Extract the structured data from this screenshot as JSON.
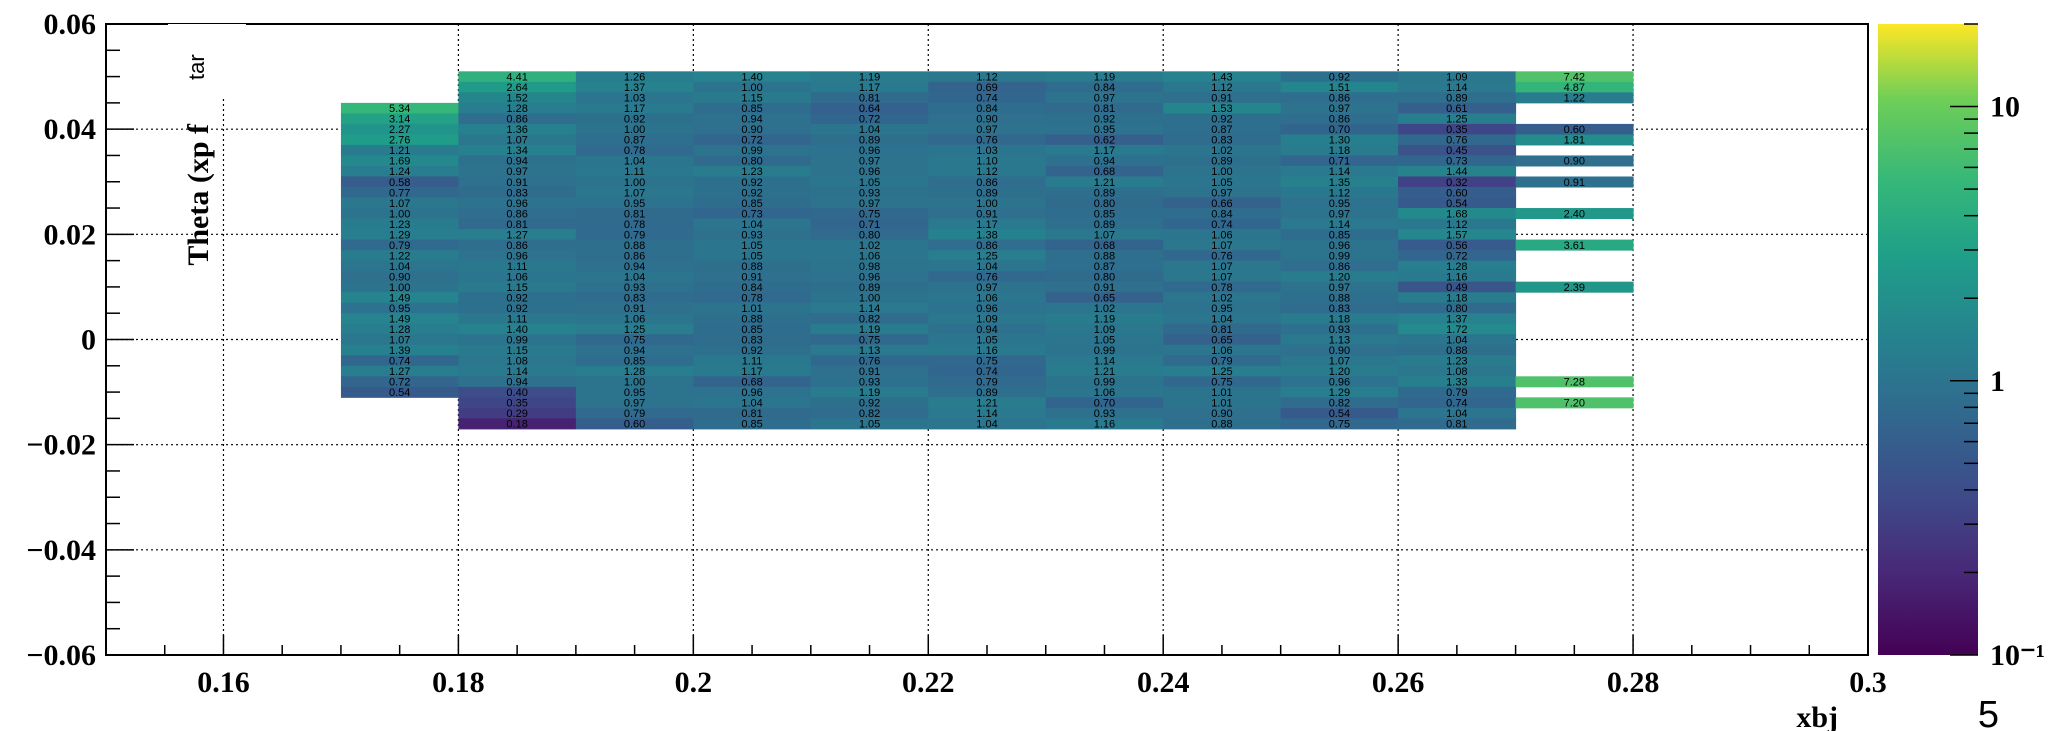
{
  "chart_data": {
    "type": "heatmap",
    "title": "",
    "xlabel": "xbj",
    "ylabel": "Theta (xp f",
    "ylabel_box_text": "tar",
    "corner_text": "5",
    "xlim": [
      0.15,
      0.3
    ],
    "ylim": [
      -0.06,
      0.06
    ],
    "x_ticks": [
      "0.16",
      "0.18",
      "0.2",
      "0.22",
      "0.24",
      "0.26",
      "0.28",
      "0.3"
    ],
    "x_tick_values": [
      0.16,
      0.18,
      0.2,
      0.22,
      0.24,
      0.26,
      0.28,
      0.3
    ],
    "y_ticks": [
      "0.06",
      "0.04",
      "0.02",
      "0",
      "−0.02",
      "−0.04",
      "−0.06"
    ],
    "y_tick_values": [
      0.06,
      0.04,
      0.02,
      0,
      -0.02,
      -0.04,
      -0.06
    ],
    "grid": true,
    "log_z": true,
    "zlim": [
      0.1,
      20
    ],
    "z_ticks": [
      "10",
      "1",
      "10⁻¹"
    ],
    "z_tick_values": [
      10,
      1,
      0.1
    ],
    "colormap": "viridis",
    "x_bin_edges": [
      0.17,
      0.18,
      0.19,
      0.2,
      0.21,
      0.22,
      0.23,
      0.24,
      0.25,
      0.26,
      0.27,
      0.28
    ],
    "y_bin_width": 0.002,
    "columns": [
      {
        "x_low": 0.17,
        "y_top": 0.045,
        "values": [
          "5.34",
          "3.14",
          "2.27",
          "2.76",
          "1.21",
          "1.69",
          "1.24",
          "0.58",
          "0.77",
          "1.07",
          "1.00",
          "1.23",
          "1.29",
          "0.79",
          "1.22",
          "1.04",
          "0.90",
          "1.00",
          "1.49",
          "0.95",
          "1.49",
          "1.28",
          "1.07",
          "1.39",
          "0.74",
          "1.27",
          "0.72",
          "0.54"
        ]
      },
      {
        "x_low": 0.18,
        "y_top": 0.051,
        "values": [
          "4.41",
          "2.64",
          "1.52",
          "1.28",
          "0.86",
          "1.36",
          "1.07",
          "1.34",
          "0.94",
          "0.97",
          "0.91",
          "0.83",
          "0.96",
          "0.86",
          "0.81",
          "1.27",
          "0.86",
          "0.96",
          "1.11",
          "1.06",
          "1.15",
          "0.92",
          "0.92",
          "1.11",
          "1.40",
          "0.99",
          "1.15",
          "1.08",
          "1.14",
          "0.94",
          "0.40",
          "0.35",
          "0.29",
          "0.18"
        ]
      },
      {
        "x_low": 0.19,
        "y_top": 0.051,
        "values": [
          "1.26",
          "1.37",
          "1.03",
          "1.17",
          "0.92",
          "1.00",
          "0.87",
          "0.78",
          "1.04",
          "1.11",
          "1.00",
          "1.07",
          "0.95",
          "0.81",
          "0.78",
          "0.79",
          "0.88",
          "0.86",
          "0.94",
          "1.04",
          "0.93",
          "0.83",
          "0.91",
          "1.06",
          "1.25",
          "0.75",
          "0.94",
          "0.85",
          "1.28",
          "1.00",
          "0.95",
          "0.97",
          "0.79",
          "0.60"
        ]
      },
      {
        "x_low": 0.2,
        "y_top": 0.051,
        "values": [
          "1.40",
          "1.00",
          "1.15",
          "0.85",
          "0.94",
          "0.90",
          "0.72",
          "0.99",
          "0.80",
          "1.23",
          "0.92",
          "0.92",
          "0.85",
          "0.73",
          "1.04",
          "0.93",
          "1.05",
          "1.05",
          "0.88",
          "0.91",
          "0.84",
          "0.78",
          "1.01",
          "0.88",
          "0.85",
          "0.83",
          "0.92",
          "1.11",
          "1.17",
          "0.68",
          "0.96",
          "1.04",
          "0.81",
          "0.85"
        ]
      },
      {
        "x_low": 0.21,
        "y_top": 0.051,
        "values": [
          "1.19",
          "1.17",
          "0.81",
          "0.64",
          "0.72",
          "1.04",
          "0.89",
          "0.96",
          "0.97",
          "0.96",
          "1.05",
          "0.93",
          "0.97",
          "0.75",
          "0.71",
          "0.80",
          "1.02",
          "1.06",
          "0.98",
          "0.96",
          "0.89",
          "1.00",
          "1.14",
          "0.82",
          "1.19",
          "0.75",
          "1.13",
          "0.76",
          "0.91",
          "0.93",
          "1.19",
          "0.92",
          "0.82",
          "1.05"
        ]
      },
      {
        "x_low": 0.22,
        "y_top": 0.051,
        "values": [
          "1.12",
          "0.69",
          "0.74",
          "0.84",
          "0.90",
          "0.97",
          "0.76",
          "1.03",
          "1.10",
          "1.12",
          "0.86",
          "0.89",
          "1.00",
          "0.91",
          "1.17",
          "1.38",
          "0.86",
          "1.25",
          "1.04",
          "0.76",
          "0.97",
          "1.06",
          "0.96",
          "1.09",
          "0.94",
          "1.05",
          "1.16",
          "0.75",
          "0.74",
          "0.79",
          "0.89",
          "1.21",
          "1.14",
          "1.04"
        ]
      },
      {
        "x_low": 0.23,
        "y_top": 0.051,
        "values": [
          "1.19",
          "0.84",
          "0.97",
          "0.81",
          "0.92",
          "0.95",
          "0.62",
          "1.17",
          "0.94",
          "0.68",
          "1.21",
          "0.89",
          "0.80",
          "0.85",
          "0.89",
          "1.07",
          "0.68",
          "0.88",
          "0.87",
          "0.80",
          "0.91",
          "0.65",
          "1.02",
          "1.19",
          "1.09",
          "1.05",
          "0.99",
          "1.14",
          "1.21",
          "0.99",
          "1.06",
          "0.70",
          "0.93",
          "1.16"
        ]
      },
      {
        "x_low": 0.24,
        "y_top": 0.051,
        "values": [
          "1.43",
          "1.12",
          "0.91",
          "1.53",
          "0.92",
          "0.87",
          "0.83",
          "1.02",
          "0.89",
          "1.00",
          "1.05",
          "0.97",
          "0.66",
          "0.84",
          "0.74",
          "1.06",
          "1.07",
          "0.76",
          "1.07",
          "1.07",
          "0.78",
          "1.02",
          "0.95",
          "1.04",
          "0.81",
          "0.65",
          "1.06",
          "0.79",
          "1.25",
          "0.75",
          "1.01",
          "1.01",
          "0.90",
          "0.88"
        ]
      },
      {
        "x_low": 0.25,
        "y_top": 0.051,
        "values": [
          "0.92",
          "1.51",
          "0.86",
          "0.97",
          "0.86",
          "0.70",
          "1.30",
          "1.18",
          "0.71",
          "1.14",
          "1.35",
          "1.12",
          "0.95",
          "0.97",
          "1.14",
          "0.85",
          "0.96",
          "0.99",
          "0.86",
          "1.20",
          "0.97",
          "0.88",
          "0.83",
          "1.18",
          "0.93",
          "1.13",
          "0.90",
          "1.07",
          "1.20",
          "0.96",
          "1.29",
          "0.82",
          "0.54",
          "0.75"
        ]
      },
      {
        "x_low": 0.26,
        "y_top": 0.051,
        "values": [
          "1.09",
          "1.14",
          "0.89",
          "0.61",
          "1.25",
          "0.35",
          "0.76",
          "0.45",
          "0.73",
          "1.44",
          "0.32",
          "0.60",
          "0.54",
          "1.68",
          "1.12",
          "1.57",
          "0.56",
          "0.72",
          "1.28",
          "1.16",
          "0.49",
          "1.18",
          "0.80",
          "1.37",
          "1.72",
          "1.04",
          "0.88",
          "1.23",
          "1.08",
          "1.33",
          "0.79",
          "0.74",
          "1.04",
          "0.81"
        ]
      },
      {
        "x_low": 0.27,
        "y_top": 0.051,
        "values": [
          "7.42",
          "4.87",
          "1.22",
          "",
          "",
          "0.60",
          "1.81",
          "",
          "0.90",
          "",
          "0.91",
          "",
          "",
          "2.40",
          "",
          "",
          "3.61",
          "",
          "",
          "",
          "2.39",
          "",
          "",
          "",
          "",
          "",
          "",
          "",
          "",
          "7.28",
          "",
          "7.20",
          "",
          ""
        ]
      }
    ]
  }
}
